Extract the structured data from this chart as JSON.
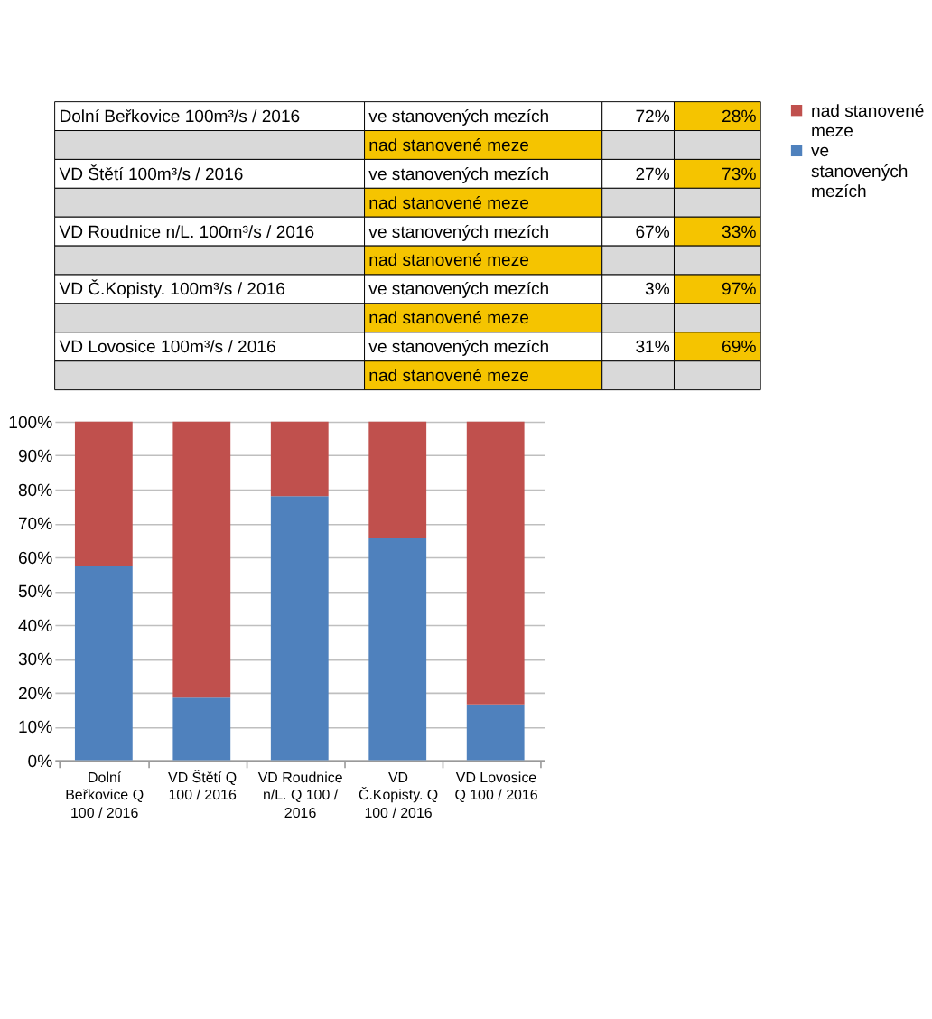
{
  "chart_data": [
    {
      "type": "other",
      "annotations": [
        "Dolní Beřkovice 100m³/s  / 2016",
        "ve stanovených  mezích",
        "72%",
        "28%",
        "nad stanovené meze",
        "VD Štětí 100m³/s  / 2016",
        "ve stanovených  mezích",
        "27%",
        "73%",
        "nad stanovené meze",
        "VD Roudnice n/L. 100m³/s  / 2016",
        "ve stanovených  mezích",
        "67%",
        "33%",
        "nad stanovené meze",
        "VD Č.Kopisty. 100m³/s  / 2016",
        "ve stanovených  mezích",
        "3%",
        "97%",
        "nad stanovené meze",
        "VD Lovosice 100m³/s  / 2016",
        "ve stanovených  mezích",
        "31%",
        "69%",
        "nad stanovené meze"
      ]
    },
    {
      "type": "bar",
      "stacked": true,
      "categories": [
        "Dolní Beřkovice Q 100 / 2016",
        "VD Štětí Q 100 / 2016",
        "VD Roudnice n/L. Q 100 / 2016",
        "VD Č.Kopisty. Q 100 / 2016",
        "VD Lovosice Q 100 / 2016"
      ],
      "series": [
        {
          "name": "ve stanovených mezích",
          "color": "#4f81bd",
          "values": [
            57.5,
            18.5,
            78,
            65.5,
            16.5
          ]
        },
        {
          "name": "nad stanovené meze",
          "color": "#c0504d",
          "values": [
            42.5,
            81.5,
            22,
            34.5,
            83.5
          ]
        }
      ],
      "ylim": [
        0,
        100
      ],
      "yticks": [
        {
          "value": 0,
          "label": "0%"
        },
        {
          "value": 10,
          "label": "10%"
        },
        {
          "value": 20,
          "label": "20%"
        },
        {
          "value": 30,
          "label": "30%"
        },
        {
          "value": 40,
          "label": "40%"
        },
        {
          "value": 50,
          "label": "50%"
        },
        {
          "value": 60,
          "label": "60%"
        },
        {
          "value": 70,
          "label": "70%"
        },
        {
          "value": 80,
          "label": "80%"
        },
        {
          "value": 90,
          "label": "90%"
        },
        {
          "value": 100,
          "label": "100%"
        }
      ],
      "grid": "y",
      "legend": "right"
    }
  ]
}
